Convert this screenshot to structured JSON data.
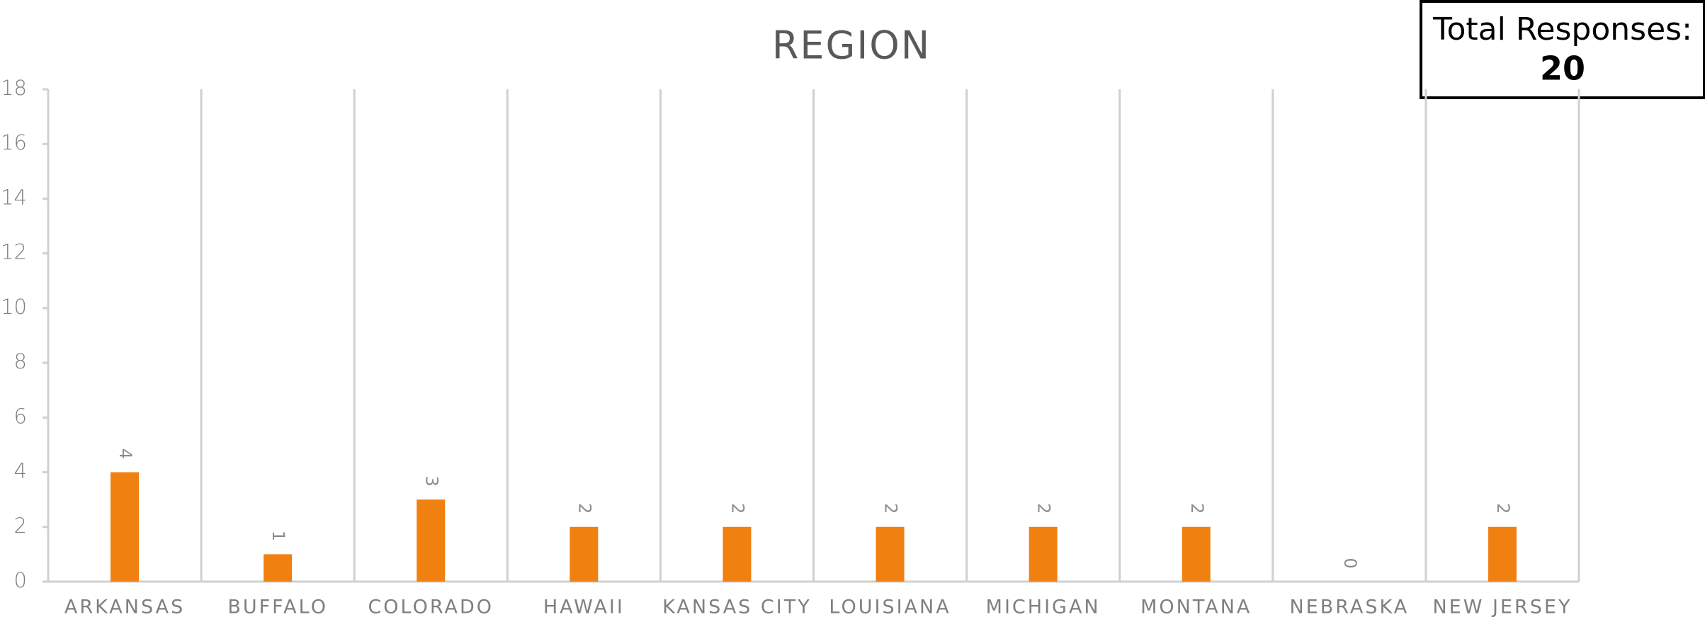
{
  "chart_data": {
    "type": "bar",
    "title": "REGION",
    "categories": [
      "ARKANSAS",
      "BUFFALO",
      "COLORADO",
      "HAWAII",
      "KANSAS CITY",
      "LOUISIANA",
      "MICHIGAN",
      "MONTANA",
      "NEBRASKA",
      "NEW JERSEY"
    ],
    "values": [
      4,
      1,
      3,
      2,
      2,
      2,
      2,
      2,
      0,
      2
    ],
    "color": "#f0800f",
    "ylim": [
      0,
      18
    ],
    "yticks": [
      0,
      2,
      4,
      6,
      8,
      10,
      12,
      14,
      16,
      18
    ],
    "data_labels": true,
    "annotation": {
      "label": "Total Responses:",
      "value": 20
    }
  }
}
